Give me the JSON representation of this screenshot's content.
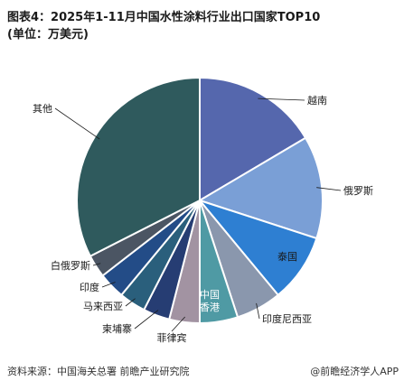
{
  "title": {
    "line1": "图表4：2025年1-11月中国水性涂料行业出口国家TOP10",
    "line2": "(单位：万美元)"
  },
  "footer": {
    "source": "资料来源：中国海关总署 前瞻产业研究院",
    "brand": "@前瞻经济学人APP"
  },
  "chart_data": {
    "type": "pie",
    "title": "2025年1-11月中国水性涂料行业出口国家TOP10",
    "unit": "万美元",
    "start_angle_deg": 0,
    "direction": "clockwise",
    "slices": [
      {
        "label": "越南",
        "value": 16.5,
        "color": "#5567ad"
      },
      {
        "label": "俄罗斯",
        "value": 13.5,
        "color": "#7a9fd6"
      },
      {
        "label": "泰国",
        "value": 9.0,
        "color": "#2e7fd2"
      },
      {
        "label": "印度尼西亚",
        "value": 6.0,
        "color": "#8a97ad"
      },
      {
        "label": "中国香港",
        "value": 5.0,
        "color": "#4f9aa4"
      },
      {
        "label": "菲律宾",
        "value": 4.0,
        "color": "#a293a2"
      },
      {
        "label": "柬埔寨",
        "value": 3.5,
        "color": "#263d73"
      },
      {
        "label": "马来西亚",
        "value": 3.5,
        "color": "#2a5f7c"
      },
      {
        "label": "印度",
        "value": 3.5,
        "color": "#234c87"
      },
      {
        "label": "白俄罗斯",
        "value": 3.0,
        "color": "#4b5563"
      },
      {
        "label": "其他",
        "value": 32.5,
        "color": "#2f5a5d"
      }
    ]
  }
}
